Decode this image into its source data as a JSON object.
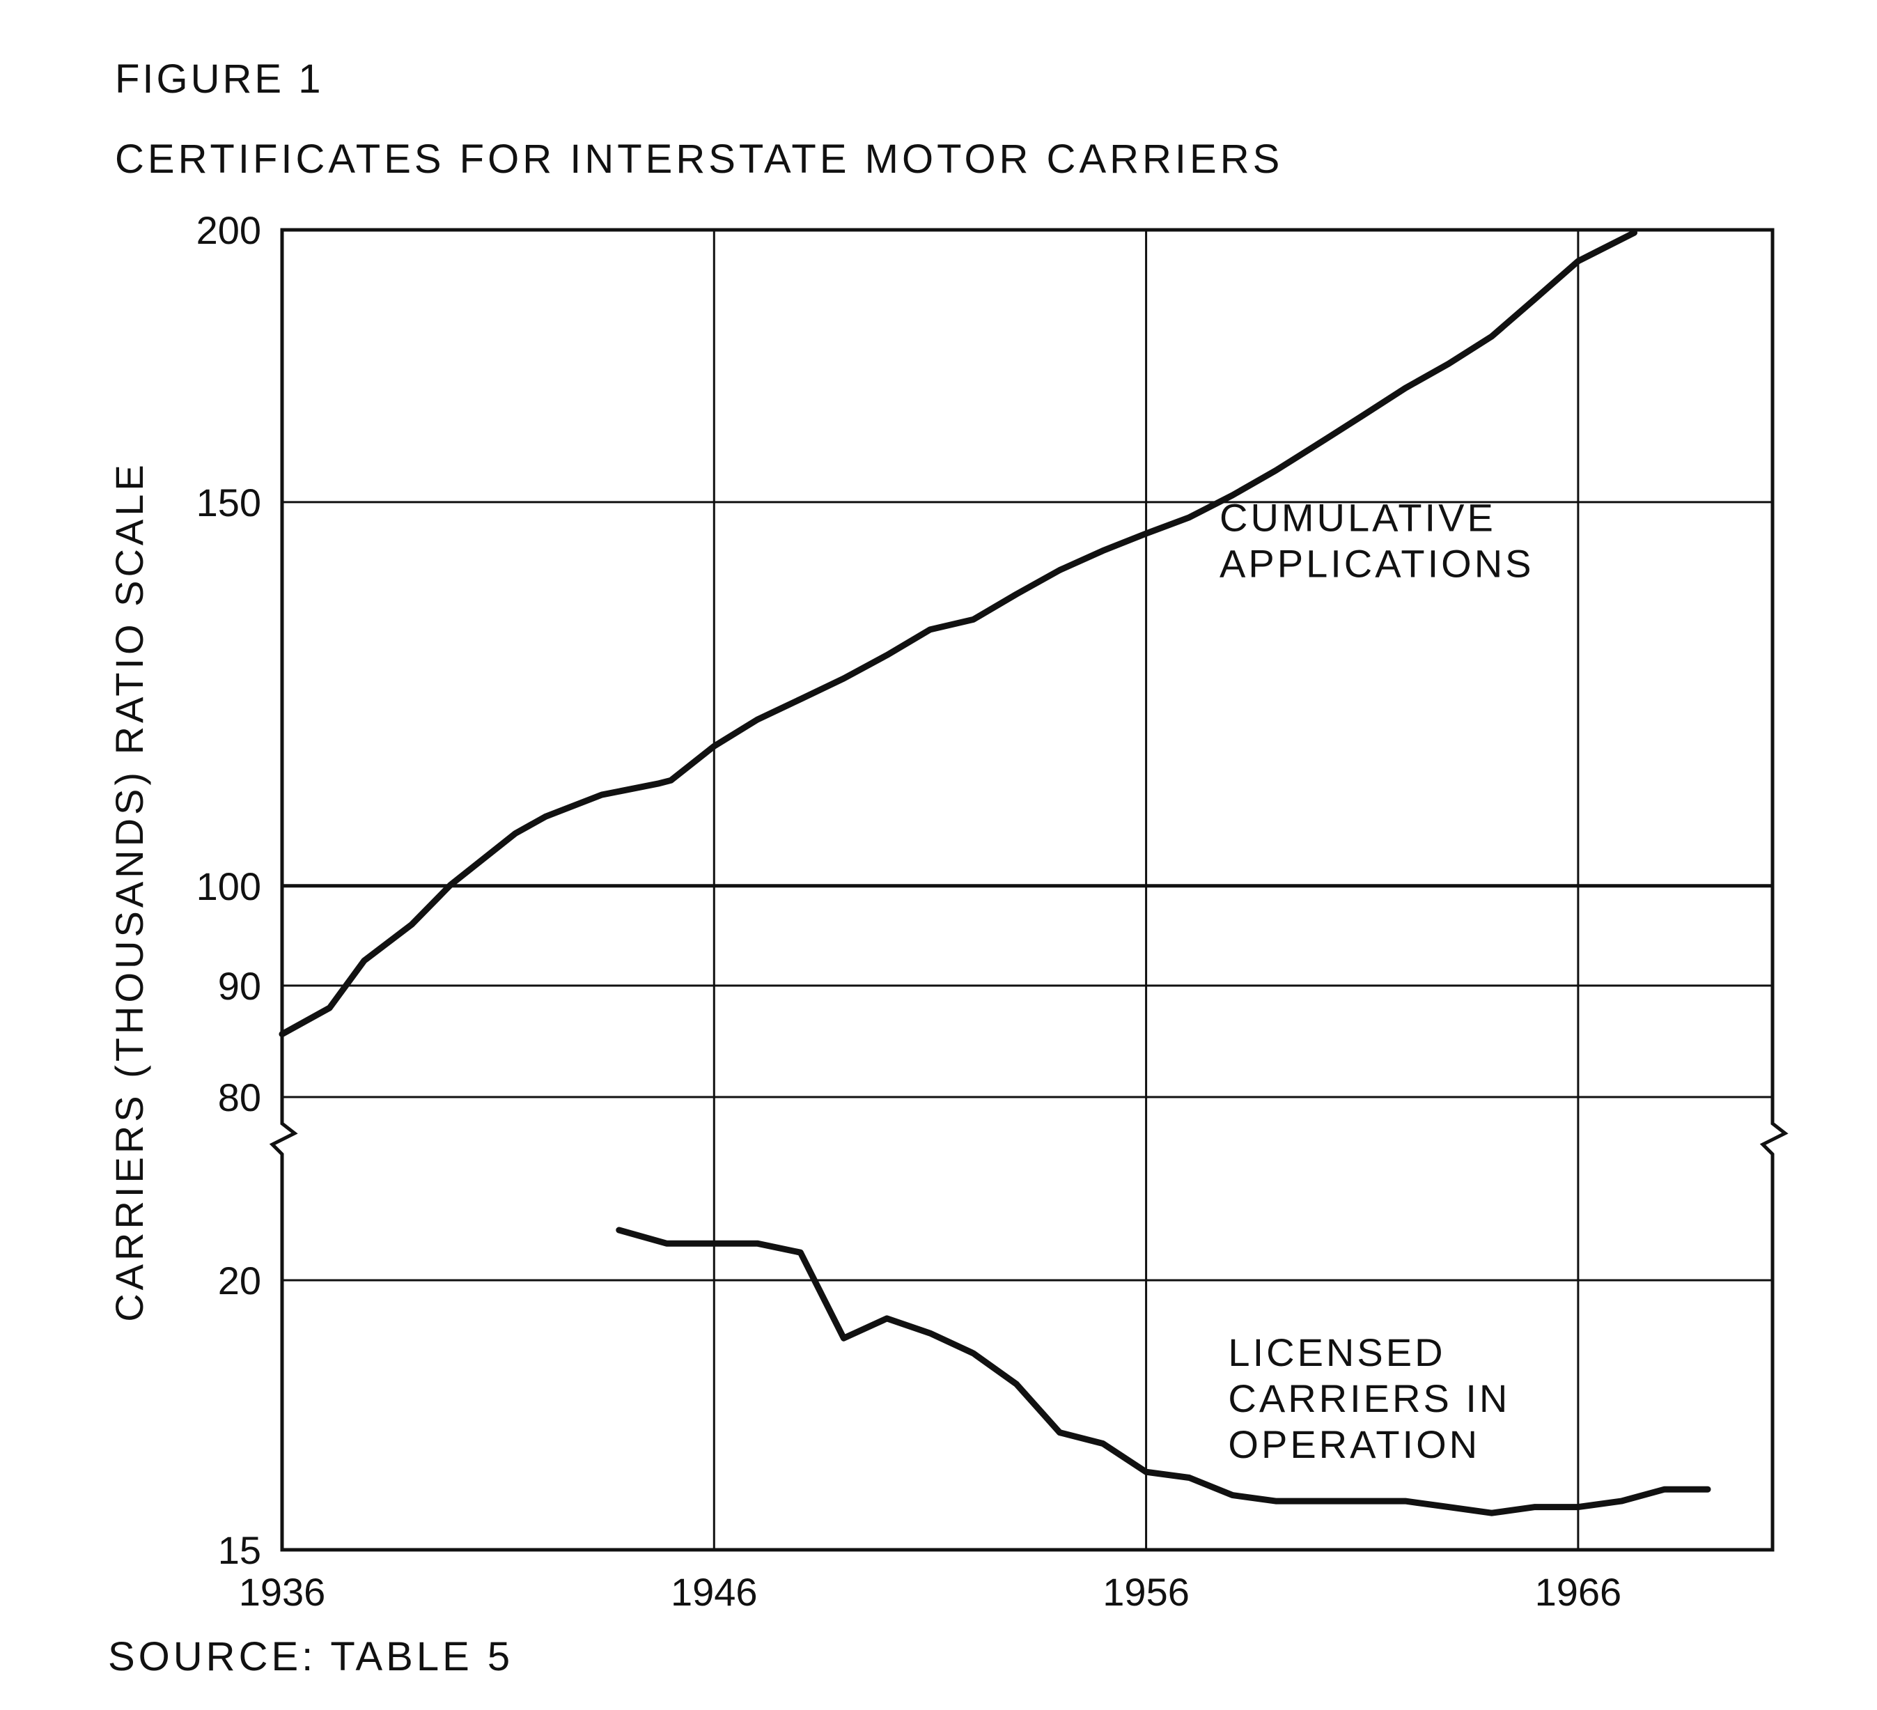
{
  "figure": {
    "label": "FIGURE 1",
    "title": "CERTIFICATES FOR INTERSTATE MOTOR CARRIERS",
    "source": "SOURCE: TABLE 5"
  },
  "chart_data": {
    "type": "line",
    "title": "CERTIFICATES FOR INTERSTATE MOTOR CARRIERS",
    "ylabel": "CARRIERS (THOUSANDS) RATIO SCALE",
    "xlabel": "",
    "xlim": [
      1936,
      1970.5
    ],
    "scale": "ratio (log), broken axis",
    "grid": true,
    "x_ticks": [
      1936,
      1946,
      1956,
      1966
    ],
    "x_tick_labels": [
      "1936",
      "1946",
      "1956",
      "1966"
    ],
    "upper_panel": {
      "ylim": [
        80,
        200
      ],
      "y_ticks": [
        80,
        90,
        100,
        150,
        200
      ],
      "y_tick_labels": [
        "80",
        "90",
        "100",
        "150",
        "200"
      ]
    },
    "lower_panel": {
      "ylim": [
        15,
        22
      ],
      "y_ticks": [
        15,
        20
      ],
      "y_tick_labels": [
        "15",
        "20"
      ]
    },
    "series": [
      {
        "name": "CUMULATIVE APPLICATIONS",
        "label_lines": [
          "CUMULATIVE",
          "APPLICATIONS"
        ],
        "panel": "upper",
        "x": [
          1936,
          1937.1,
          1937.9,
          1939,
          1939.9,
          1941.4,
          1942.1,
          1943.4,
          1944.7,
          1945,
          1946,
          1947,
          1948,
          1949,
          1950,
          1951,
          1952,
          1953,
          1954,
          1955,
          1956,
          1957,
          1958,
          1959,
          1960,
          1961,
          1962,
          1963,
          1964,
          1965,
          1966,
          1967.3
        ],
        "y": [
          85.5,
          87.9,
          92.4,
          96.0,
          100.1,
          105.7,
          107.6,
          110.1,
          111.4,
          111.8,
          115.9,
          119.2,
          121.8,
          124.5,
          127.6,
          131.1,
          132.5,
          136.1,
          139.6,
          142.5,
          145.1,
          147.6,
          151.1,
          155.1,
          159.6,
          164.3,
          169.2,
          173.6,
          178.7,
          185.9,
          193.5,
          199.4
        ]
      },
      {
        "name": "LICENSED CARRIERS IN OPERATION",
        "label_lines": [
          "LICENSED",
          "CARRIERS IN",
          "OPERATION"
        ],
        "panel": "lower",
        "x": [
          1943.8,
          1944.9,
          1946,
          1947,
          1948,
          1949,
          1950,
          1951,
          1952,
          1953,
          1954,
          1955,
          1956,
          1957,
          1958,
          1959,
          1960,
          1961,
          1962,
          1963,
          1964,
          1965,
          1966,
          1967,
          1968,
          1969
        ],
        "y": [
          21.1,
          20.8,
          20.8,
          20.8,
          20.6,
          18.8,
          19.2,
          18.9,
          18.5,
          17.9,
          17.0,
          16.8,
          16.3,
          16.2,
          15.9,
          15.8,
          15.8,
          15.8,
          15.8,
          15.7,
          15.6,
          15.7,
          15.7,
          15.8,
          16.0,
          16.0
        ]
      }
    ]
  }
}
